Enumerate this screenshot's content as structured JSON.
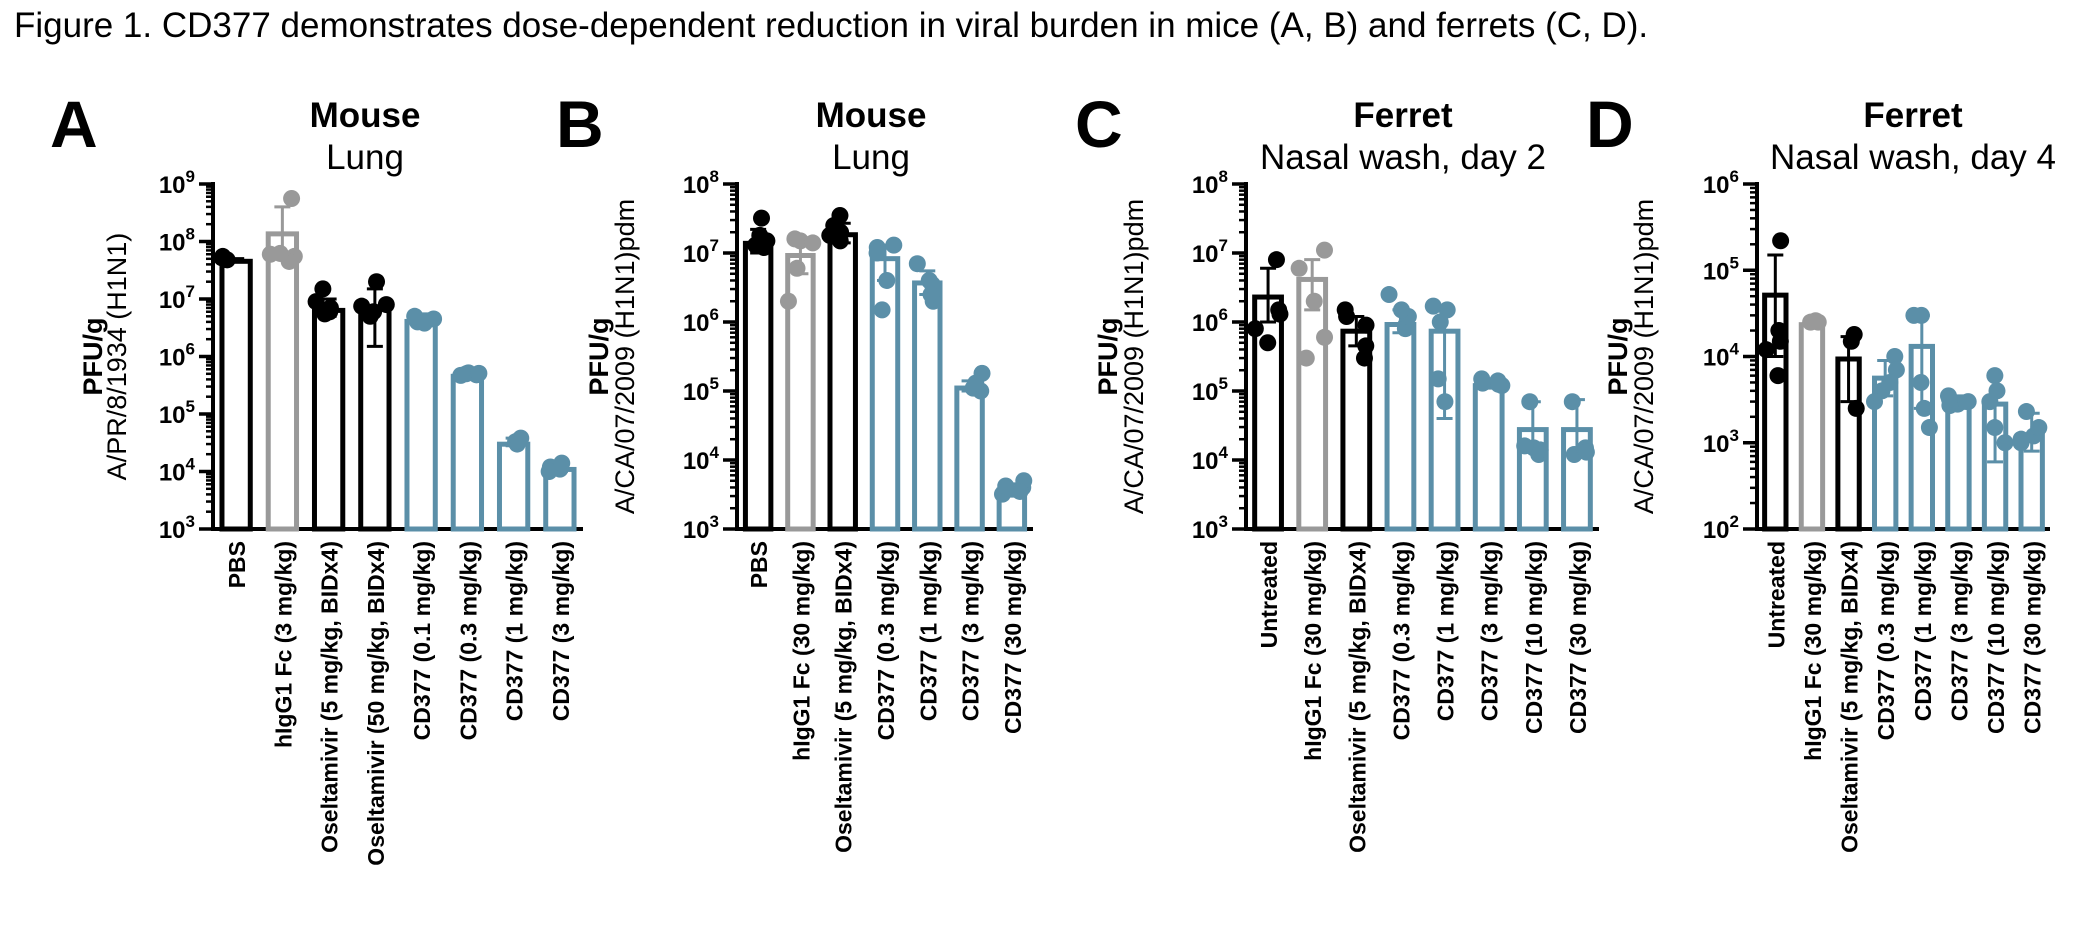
{
  "caption": "Figure 1. CD377 demonstrates dose-dependent reduction in viral burden in mice (A, B) and ferrets (C, D).",
  "colors": {
    "black": "#000000",
    "grey": "#999999",
    "blue": "#5b8fa8"
  },
  "chart_data": [
    {
      "type": "bar",
      "panel": "A",
      "title": "Mouse",
      "subtitle": "Lung",
      "ylabel": "PFU/g",
      "ylabel2": "A/PR/8/1934 (H1N1)",
      "yscale": "log",
      "ylim": [
        1000,
        1000000000
      ],
      "yticks": [
        {
          "base": "10",
          "exp": "3"
        },
        {
          "base": "10",
          "exp": "4"
        },
        {
          "base": "10",
          "exp": "5"
        },
        {
          "base": "10",
          "exp": "6"
        },
        {
          "base": "10",
          "exp": "7"
        },
        {
          "base": "10",
          "exp": "8"
        },
        {
          "base": "10",
          "exp": "9"
        }
      ],
      "categories": [
        "PBS",
        "hIgG1 Fc (3 mg/kg)",
        "Oseltamivir (5 mg/kg, BIDx4)",
        "Oseltamivir (50 mg/kg, BIDx4)",
        "CD377 (0.1 mg/kg)",
        "CD377 (0.3 mg/kg)",
        "CD377 (1 mg/kg)",
        "CD377 (3 mg/kg)"
      ],
      "colors": [
        "black",
        "grey",
        "black",
        "black",
        "blue",
        "blue",
        "blue",
        "blue"
      ],
      "values": [
        50000000,
        150000000,
        7000000,
        8000000,
        4500000,
        500000,
        33000,
        12000
      ],
      "errors": [
        [
          50000000,
          50000000
        ],
        [
          50000000,
          400000000
        ],
        [
          5000000,
          10000000
        ],
        [
          1500000,
          15000000
        ],
        [
          3500000,
          5500000
        ],
        [
          450000,
          550000
        ],
        [
          28000,
          38000
        ],
        [
          10000,
          14000
        ]
      ],
      "points": [
        [
          52000000,
          48000000,
          55000000
        ],
        [
          55000000,
          45000000,
          60000000,
          62000000,
          560000000
        ],
        [
          9000000,
          7000000,
          5500000,
          15000000,
          6000000
        ],
        [
          20000000,
          6000000,
          5000000,
          8000000,
          7500000
        ],
        [
          4000000,
          5000000,
          4500000,
          3800000
        ],
        [
          500000,
          480000,
          520000,
          510000,
          470000
        ],
        [
          30000,
          38000,
          33000,
          35000
        ],
        [
          12000,
          11000,
          14000,
          10000
        ]
      ]
    },
    {
      "type": "bar",
      "panel": "B",
      "title": "Mouse",
      "subtitle": "Lung",
      "ylabel": "PFU/g",
      "ylabel2": "A/CA/07/2009 (H1N1)pdm",
      "yscale": "log",
      "ylim": [
        1000,
        100000000
      ],
      "yticks": [
        {
          "base": "10",
          "exp": "3"
        },
        {
          "base": "10",
          "exp": "4"
        },
        {
          "base": "10",
          "exp": "5"
        },
        {
          "base": "10",
          "exp": "6"
        },
        {
          "base": "10",
          "exp": "7"
        },
        {
          "base": "10",
          "exp": "8"
        }
      ],
      "categories": [
        "PBS",
        "hIgG1 Fc (30 mg/kg)",
        "Oseltamivir (5 mg/kg, BIDx4)",
        "CD377 (0.3 mg/kg)",
        "CD377 (1 mg/kg)",
        "CD377 (3 mg/kg)",
        "CD377 (30 mg/kg)"
      ],
      "colors": [
        "black",
        "grey",
        "black",
        "blue",
        "blue",
        "blue",
        "blue"
      ],
      "values": [
        15000000,
        10000000,
        20000000,
        9000000,
        4000000,
        120000,
        4000
      ],
      "errors": [
        [
          10000000,
          22000000
        ],
        [
          5000000,
          14000000
        ],
        [
          14000000,
          27000000
        ],
        [
          4000000,
          13000000
        ],
        [
          2500000,
          5500000
        ],
        [
          100000,
          140000
        ],
        [
          3000,
          4500
        ]
      ],
      "points": [
        [
          12000000,
          18000000,
          32000000,
          15000000,
          13000000
        ],
        [
          16000000,
          6000000,
          2000000,
          15000000,
          14000000
        ],
        [
          20000000,
          15000000,
          35000000,
          25000000,
          18000000
        ],
        [
          12000000,
          4000000,
          10000000,
          1500000,
          13000000
        ],
        [
          4000000,
          7000000,
          2000000,
          3500000,
          2500000
        ],
        [
          180000,
          110000,
          120000,
          100000,
          130000
        ],
        [
          4000,
          5000,
          3500,
          3200,
          4200
        ]
      ]
    },
    {
      "type": "bar",
      "panel": "C",
      "title": "Ferret",
      "subtitle": "Nasal wash, day 2",
      "ylabel": "PFU/g",
      "ylabel2": "A/CA/07/2009 (H1N1)pdm",
      "yscale": "log",
      "ylim": [
        1000,
        100000000
      ],
      "yticks": [
        {
          "base": "10",
          "exp": "3"
        },
        {
          "base": "10",
          "exp": "4"
        },
        {
          "base": "10",
          "exp": "5"
        },
        {
          "base": "10",
          "exp": "6"
        },
        {
          "base": "10",
          "exp": "7"
        },
        {
          "base": "10",
          "exp": "8"
        }
      ],
      "categories": [
        "Untreated",
        "hIgG1 Fc (30 mg/kg)",
        "Oseltamivir (5 mg/kg, BIDx4)",
        "CD377 (0.3 mg/kg)",
        "CD377 (1 mg/kg)",
        "CD377 (3 mg/kg)",
        "CD377 (10 mg/kg)",
        "CD377 (30 mg/kg)"
      ],
      "colors": [
        "black",
        "grey",
        "black",
        "blue",
        "blue",
        "blue",
        "blue",
        "blue"
      ],
      "values": [
        2500000,
        4500000,
        800000,
        1000000,
        800000,
        130000,
        30000,
        30000
      ],
      "errors": [
        [
          1000000,
          6000000
        ],
        [
          1500000,
          8000000
        ],
        [
          450000,
          1200000
        ],
        [
          700000,
          1500000
        ],
        [
          40000,
          1700000
        ],
        [
          110000,
          150000
        ],
        [
          13000,
          70000
        ],
        [
          11000,
          75000
        ]
      ],
      "points": [
        [
          8000000,
          1300000,
          500000,
          1500000,
          800000
        ],
        [
          6000000,
          11000000,
          300000,
          600000,
          2000000
        ],
        [
          1500000,
          1200000,
          300000,
          450000,
          900000
        ],
        [
          2500000,
          900000,
          800000,
          1200000,
          1500000
        ],
        [
          1500000,
          1700000,
          70000,
          1000000,
          150000
        ],
        [
          150000,
          120000,
          130000,
          140000,
          125000
        ],
        [
          70000,
          15000,
          12000,
          14000,
          16000
        ],
        [
          70000,
          12000,
          14000,
          15000,
          13000
        ]
      ]
    },
    {
      "type": "bar",
      "panel": "D",
      "title": "Ferret",
      "subtitle": "Nasal wash, day 4",
      "ylabel": "PFU/g",
      "ylabel2": "A/CA/07/2009 (H1N1)pdm",
      "yscale": "log",
      "ylim": [
        100,
        1000000
      ],
      "yticks": [
        {
          "base": "10",
          "exp": "2"
        },
        {
          "base": "10",
          "exp": "3"
        },
        {
          "base": "10",
          "exp": "4"
        },
        {
          "base": "10",
          "exp": "5"
        },
        {
          "base": "10",
          "exp": "6"
        }
      ],
      "categories": [
        "Untreated",
        "hIgG1 Fc (30 mg/kg)",
        "Oseltamivir (5 mg/kg, BIDx4)",
        "CD377 (0.3 mg/kg)",
        "CD377 (1 mg/kg)",
        "CD377 (3 mg/kg)",
        "CD377 (10 mg/kg)",
        "CD377 (30 mg/kg)"
      ],
      "colors": [
        "black",
        "grey",
        "black",
        "blue",
        "blue",
        "blue",
        "blue",
        "blue"
      ],
      "values": [
        55000,
        25000,
        10000,
        6000,
        14000,
        3000,
        3000,
        1300
      ],
      "errors": [
        [
          10000,
          150000
        ],
        [
          24000,
          27000
        ],
        [
          3000,
          17000
        ],
        [
          3500,
          9000
        ],
        [
          2500,
          30000
        ],
        [
          2500,
          3500
        ],
        [
          600,
          6000
        ],
        [
          800,
          2200
        ]
      ],
      "points": [
        [
          220000,
          6000,
          20000,
          15000,
          12000
        ],
        [
          25000,
          26000,
          25000
        ],
        [
          18000,
          2500,
          15000
        ],
        [
          10000,
          4000,
          3000,
          7000,
          5000
        ],
        [
          30000,
          1500,
          5000,
          2500,
          30000
        ],
        [
          3500,
          2800,
          3000,
          2700,
          3200
        ],
        [
          6000,
          3000,
          1000,
          1500,
          4000
        ],
        [
          2300,
          1200,
          1000,
          1100,
          1500
        ]
      ]
    }
  ]
}
